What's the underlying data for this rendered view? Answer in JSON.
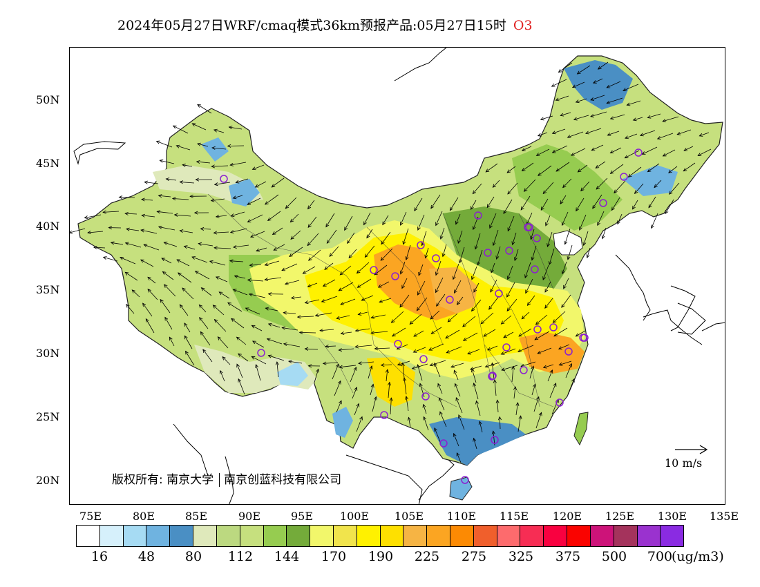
{
  "title": {
    "main": "2024年05月27日WRF/cmaq模式36km预报产品:05月27日15时",
    "pollutant": "O3"
  },
  "axes": {
    "lat_labels": [
      "50N",
      "45N",
      "40N",
      "35N",
      "30N",
      "25N",
      "20N"
    ],
    "lon_labels": [
      "75E",
      "80E",
      "85E",
      "90E",
      "95E",
      "100E",
      "105E",
      "110E",
      "115E",
      "120E",
      "125E",
      "130E",
      "135E"
    ]
  },
  "copyright": {
    "owner1": "版权所有: 南京大学",
    "owner2": "南京创蓝科技有限公司"
  },
  "wind_reference": "10 m/s",
  "colorbar": {
    "colors": [
      "#ffffff",
      "#d6f0fb",
      "#a6dbf3",
      "#6fb3e0",
      "#4a8fc4",
      "#dfe9bb",
      "#bcd980",
      "#c6e07e",
      "#96cc50",
      "#74ab3a",
      "#f2f76b",
      "#f1e44c",
      "#fff100",
      "#fee000",
      "#f6b444",
      "#fba522",
      "#fc8a03",
      "#f05f2c",
      "#fd6b6d",
      "#f72d54",
      "#f90140",
      "#fa0300",
      "#cd1379",
      "#a4335c",
      "#9a32cf",
      "#8a2be2"
    ],
    "tick_labels": [
      "16",
      "48",
      "80",
      "112",
      "144",
      "170",
      "190",
      "225",
      "275",
      "325",
      "375",
      "500",
      "700"
    ],
    "unit": "(ug/m3)"
  },
  "colors": {
    "station_marker": "#8b1fd0",
    "vector": "#000000"
  }
}
